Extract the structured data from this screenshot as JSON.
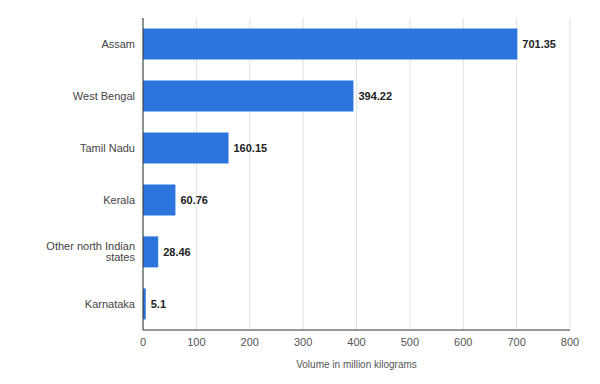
{
  "chart_data": {
    "type": "bar",
    "orientation": "horizontal",
    "categories": [
      "Assam",
      "West Bengal",
      "Tamil Nadu",
      "Kerala",
      "Other north Indian states",
      "Karnataka"
    ],
    "values": [
      701.35,
      394.22,
      160.15,
      60.76,
      28.46,
      5.1
    ],
    "color": "#2b74dc",
    "x_label": "Volume in million kilograms",
    "xlim": [
      0,
      800
    ],
    "xticks": [
      0,
      100,
      200,
      300,
      400,
      500,
      600,
      700,
      800
    ],
    "grid": true,
    "data_labels": true
  }
}
